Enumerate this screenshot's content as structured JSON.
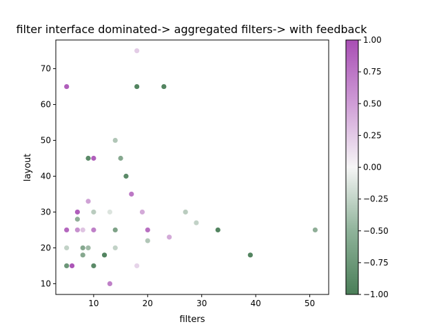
{
  "chart_data": {
    "type": "scatter",
    "title": "filter interface dominated-> aggregated filters-> with feedback",
    "xlabel": "filters",
    "ylabel": "layout",
    "xlim": [
      3,
      53.5
    ],
    "ylim": [
      7,
      78
    ],
    "xticks": [
      10,
      20,
      30,
      40,
      50
    ],
    "yticks": [
      10,
      20,
      30,
      40,
      50,
      60,
      70
    ],
    "grid": false,
    "colorbar": {
      "min": -1.0,
      "max": 1.0,
      "ticks": [
        -1.0,
        -0.75,
        -0.5,
        -0.25,
        0.0,
        0.25,
        0.5,
        0.75,
        1.0
      ],
      "tick_labels": [
        "−1.00",
        "−0.75",
        "−0.50",
        "−0.25",
        "0.00",
        "0.25",
        "0.50",
        "0.75",
        "1.00"
      ],
      "colormap": [
        "#4a7e58",
        "#f6f6f6",
        "#a84eb4"
      ]
    },
    "points": [
      {
        "x": 5,
        "y": 65,
        "c": 0.9
      },
      {
        "x": 5,
        "y": 25,
        "c": 0.85
      },
      {
        "x": 5,
        "y": 20,
        "c": -0.3
      },
      {
        "x": 5,
        "y": 15,
        "c": -0.8
      },
      {
        "x": 6,
        "y": 15,
        "c": 0.95
      },
      {
        "x": 7,
        "y": 30,
        "c": 0.9
      },
      {
        "x": 7,
        "y": 28,
        "c": -0.6
      },
      {
        "x": 7,
        "y": 25,
        "c": 0.6
      },
      {
        "x": 8,
        "y": 25,
        "c": 0.3
      },
      {
        "x": 8,
        "y": 20,
        "c": -0.65
      },
      {
        "x": 8,
        "y": 18,
        "c": -0.65
      },
      {
        "x": 9,
        "y": 45,
        "c": -0.9
      },
      {
        "x": 9,
        "y": 33,
        "c": 0.5
      },
      {
        "x": 9,
        "y": 20,
        "c": -0.5
      },
      {
        "x": 10,
        "y": 45,
        "c": 0.9
      },
      {
        "x": 10,
        "y": 30,
        "c": -0.35
      },
      {
        "x": 10,
        "y": 25,
        "c": 0.7
      },
      {
        "x": 10,
        "y": 15,
        "c": -0.9
      },
      {
        "x": 12,
        "y": 18,
        "c": -0.95
      },
      {
        "x": 13,
        "y": 30,
        "c": -0.15
      },
      {
        "x": 13,
        "y": 10,
        "c": 0.7
      },
      {
        "x": 14,
        "y": 50,
        "c": -0.4
      },
      {
        "x": 14,
        "y": 25,
        "c": -0.7
      },
      {
        "x": 14,
        "y": 20,
        "c": -0.3
      },
      {
        "x": 15,
        "y": 45,
        "c": -0.65
      },
      {
        "x": 16,
        "y": 40,
        "c": -0.9
      },
      {
        "x": 17,
        "y": 35,
        "c": 0.75
      },
      {
        "x": 18,
        "y": 75,
        "c": 0.25
      },
      {
        "x": 18,
        "y": 65,
        "c": -0.95
      },
      {
        "x": 18,
        "y": 15,
        "c": 0.2
      },
      {
        "x": 19,
        "y": 30,
        "c": 0.45
      },
      {
        "x": 20,
        "y": 25,
        "c": 0.8
      },
      {
        "x": 20,
        "y": 22,
        "c": -0.4
      },
      {
        "x": 23,
        "y": 65,
        "c": -0.95
      },
      {
        "x": 24,
        "y": 23,
        "c": 0.45
      },
      {
        "x": 27,
        "y": 30,
        "c": -0.35
      },
      {
        "x": 29,
        "y": 27,
        "c": -0.3
      },
      {
        "x": 33,
        "y": 25,
        "c": -0.95
      },
      {
        "x": 39,
        "y": 18,
        "c": -0.95
      },
      {
        "x": 51,
        "y": 25,
        "c": -0.6
      }
    ]
  }
}
